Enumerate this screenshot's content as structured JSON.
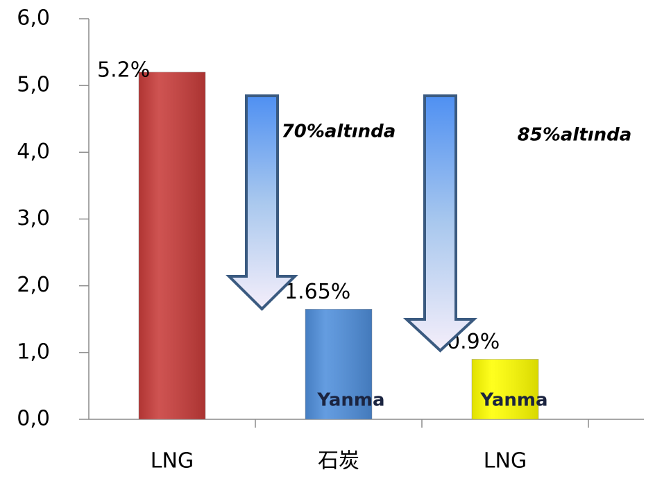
{
  "chart_data": {
    "type": "bar",
    "categories": [
      "LNG",
      "石炭",
      "LNG"
    ],
    "values": [
      5.2,
      1.65,
      0.9
    ],
    "value_labels": [
      "5.2%",
      "1.65%",
      "0.9%"
    ],
    "colors": [
      "#c83c3a",
      "#4f8fdc",
      "#ffff00"
    ],
    "ylim": [
      0,
      6
    ],
    "yticks": [
      {
        "value": 0,
        "label": "0,0"
      },
      {
        "value": 1,
        "label": "1,0"
      },
      {
        "value": 2,
        "label": "2,0"
      },
      {
        "value": 3,
        "label": "3,0"
      },
      {
        "value": 4,
        "label": "4,0"
      },
      {
        "value": 5,
        "label": "5,0"
      },
      {
        "value": 6,
        "label": "6,0"
      }
    ],
    "annotations": [
      "70%altında",
      "85%altında",
      "Yanma",
      "Yanma"
    ]
  }
}
